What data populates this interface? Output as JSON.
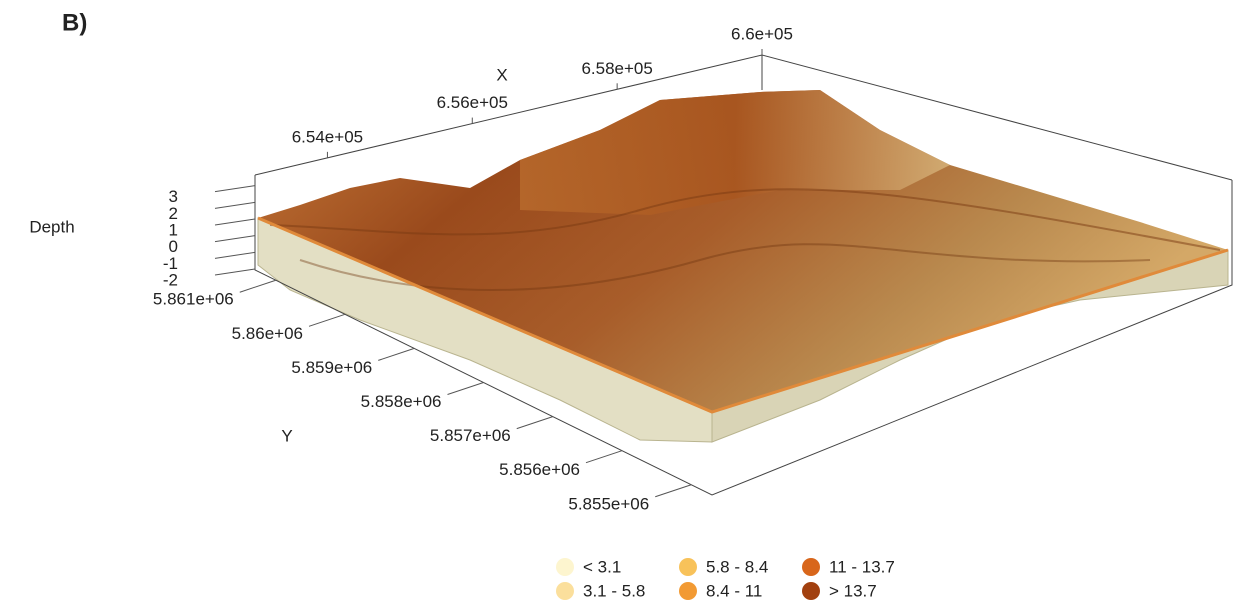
{
  "chart_data": {
    "type": "surface3d",
    "panel_label": "B)",
    "xlabel": "X",
    "ylabel": "Y",
    "zlabel": "Depth",
    "xlim": [
      653000,
      660000
    ],
    "xticks": [
      {
        "value": 654000,
        "label": "6.54e+05"
      },
      {
        "value": 656000,
        "label": "6.56e+05"
      },
      {
        "value": 658000,
        "label": "6.58e+05"
      },
      {
        "value": 660000,
        "label": "6.6e+05"
      }
    ],
    "ylim": [
      5861300,
      5854700
    ],
    "yticks": [
      {
        "value": 5861000,
        "label": "5.861e+06"
      },
      {
        "value": 5860000,
        "label": "5.86e+06"
      },
      {
        "value": 5859000,
        "label": "5.859e+06"
      },
      {
        "value": 5858000,
        "label": "5.858e+06"
      },
      {
        "value": 5857000,
        "label": "5.857e+06"
      },
      {
        "value": 5856000,
        "label": "5.856e+06"
      },
      {
        "value": 5855000,
        "label": "5.855e+06"
      }
    ],
    "zlim": [
      -2.6,
      4
    ],
    "zticks": [
      3,
      2,
      1,
      0,
      -1,
      -2
    ],
    "legend": [
      {
        "name": "< 3.1",
        "color": "#fdf5cf"
      },
      {
        "name": "3.1 - 5.8",
        "color": "#fbdf9c"
      },
      {
        "name": "5.8 - 8.4",
        "color": "#f8c25a"
      },
      {
        "name": "8.4 - 11",
        "color": "#f29a33"
      },
      {
        "name": "11 - 13.7",
        "color": "#d8661b"
      },
      {
        "name": "> 13.7",
        "color": "#a2400f"
      }
    ]
  }
}
